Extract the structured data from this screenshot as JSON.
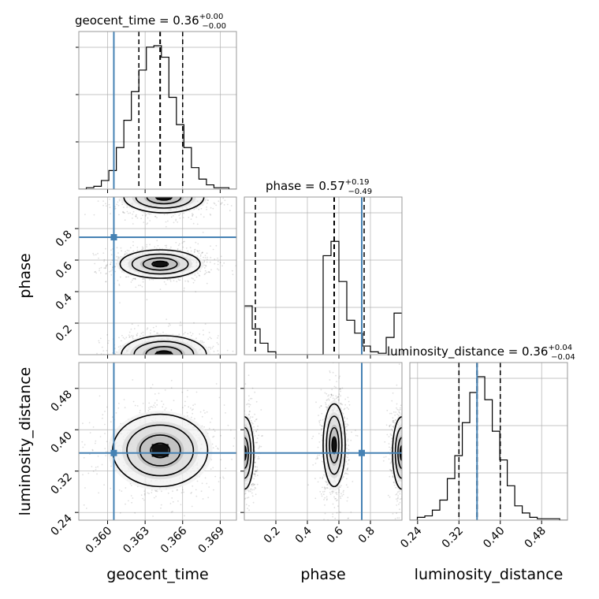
{
  "chart_data": {
    "type": "corner",
    "parameters": [
      "geocent_time",
      "phase",
      "luminosity_distance"
    ],
    "truths": {
      "geocent_time": 0.3605,
      "phase": 0.745,
      "luminosity_distance": 0.355
    },
    "titles": [
      {
        "param": "geocent_time",
        "median": "0.36",
        "plus": "+0.00",
        "minus": "−0.00",
        "text": "geocent_time = 0.36"
      },
      {
        "param": "phase",
        "median": "0.57",
        "plus": "+0.19",
        "minus": "−0.49",
        "text": "phase = 0.57"
      },
      {
        "param": "luminosity_distance",
        "median": "0.36",
        "plus": "+0.04",
        "minus": "−0.04",
        "text": "luminosity_distance = 0.36"
      }
    ],
    "axis_labels": {
      "geocent_time": "geocent_time",
      "phase": "phase",
      "luminosity_distance": "luminosity_distance"
    },
    "ranges": {
      "geocent_time": [
        0.3577,
        0.3703
      ],
      "phase": [
        0.0,
        1.0
      ],
      "luminosity_distance": [
        0.225,
        0.53
      ]
    },
    "ticks": {
      "geocent_time": {
        "values": [
          0.36,
          0.363,
          0.366,
          0.369
        ],
        "labels": [
          "0.360",
          "0.363",
          "0.366",
          "0.369"
        ]
      },
      "phase_x": {
        "values": [
          0.2,
          0.4,
          0.6,
          0.8
        ],
        "labels": [
          "0.2",
          "0.4",
          "0.6",
          "0.8"
        ]
      },
      "phase_y": {
        "values": [
          0.2,
          0.4,
          0.6,
          0.8
        ],
        "labels": [
          "0.2",
          "0.4",
          "0.6",
          "0.8"
        ]
      },
      "luminosity_distance": {
        "values": [
          0.24,
          0.32,
          0.4,
          0.48
        ],
        "labels": [
          "0.24",
          "0.32",
          "0.40",
          "0.48"
        ]
      }
    },
    "quantiles": {
      "geocent_time": [
        0.3625,
        0.3642,
        0.366
      ],
      "phase": [
        0.07,
        0.57,
        0.76
      ],
      "luminosity_distance": [
        0.32,
        0.355,
        0.4
      ]
    },
    "histograms": {
      "geocent_time": {
        "bin_start": 0.3577,
        "bin_width": 0.0006,
        "counts": [
          0,
          0.01,
          0.02,
          0.06,
          0.13,
          0.29,
          0.48,
          0.68,
          0.83,
          0.99,
          1.0,
          0.92,
          0.64,
          0.45,
          0.29,
          0.15,
          0.07,
          0.03,
          0.01,
          0.01,
          0
        ]
      },
      "phase": {
        "bin_start": 0.0,
        "bin_width": 0.05,
        "counts": [
          0.34,
          0.18,
          0.08,
          0.02,
          0,
          0,
          0,
          0,
          0,
          0,
          0.69,
          0.79,
          0.51,
          0.24,
          0.15,
          0.06,
          0.02,
          0.01,
          0.12,
          0.29
        ]
      },
      "luminosity_distance": {
        "bin_start": 0.225,
        "bin_width": 0.0145,
        "counts": [
          0,
          0.02,
          0.03,
          0.07,
          0.14,
          0.29,
          0.45,
          0.68,
          0.89,
          1.0,
          0.84,
          0.62,
          0.42,
          0.24,
          0.1,
          0.05,
          0.02,
          0.01,
          0.01,
          0.01,
          0
        ]
      }
    },
    "density_modes": {
      "geocent_time_vs_phase": [
        {
          "x": 0.3642,
          "y": 0.575,
          "sx": 0.0016,
          "sy": 0.045
        },
        {
          "x": 0.3645,
          "y": 0.0,
          "sx": 0.0017,
          "sy": 0.06
        },
        {
          "x": 0.3645,
          "y": 1.0,
          "sx": 0.0016,
          "sy": 0.05
        }
      ],
      "geocent_time_vs_luminosity_distance": [
        {
          "x": 0.3642,
          "y": 0.36,
          "sx": 0.0019,
          "sy": 0.035
        }
      ],
      "phase_vs_luminosity_distance": [
        {
          "x": 0.57,
          "y": 0.37,
          "sx": 0.035,
          "sy": 0.04
        },
        {
          "x": 0.0,
          "y": 0.355,
          "sx": 0.03,
          "sy": 0.035
        },
        {
          "x": 1.0,
          "y": 0.355,
          "sx": 0.03,
          "sy": 0.035
        }
      ]
    }
  }
}
